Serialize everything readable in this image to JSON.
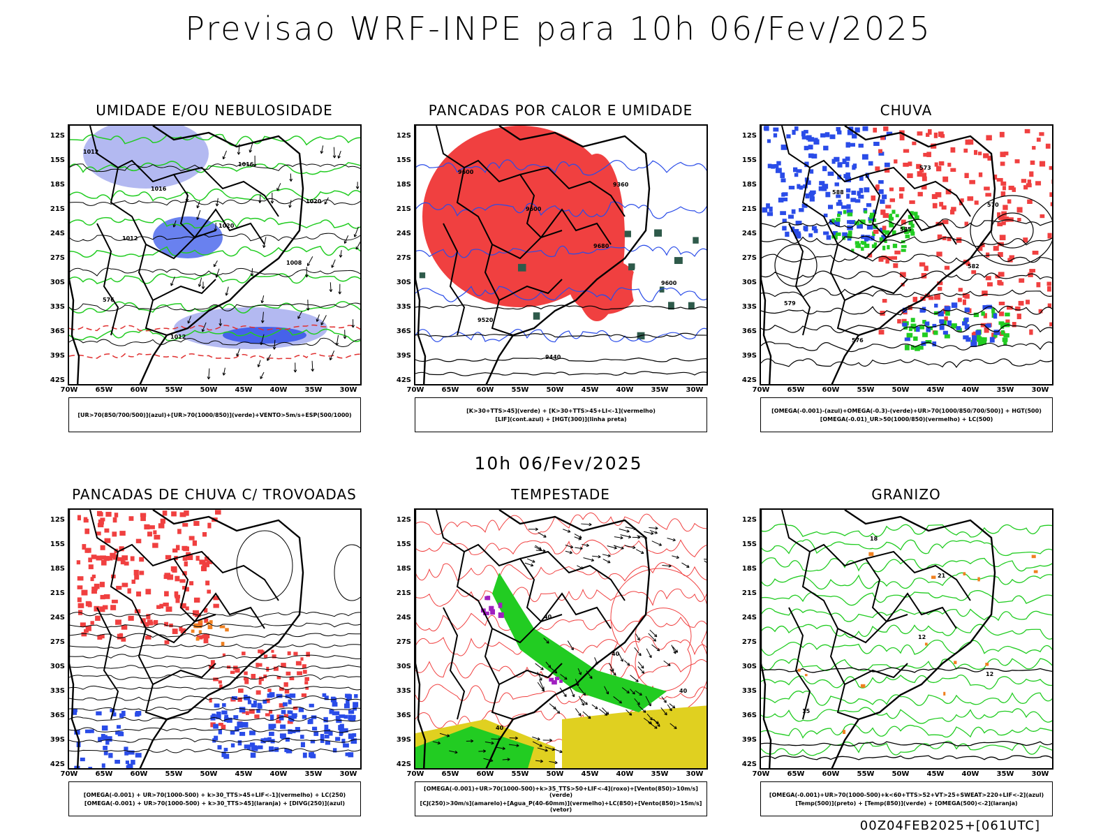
{
  "title": "Previsao WRF-INPE  para 10h 06/Fev/2025",
  "subtitle": "10h 06/Fev/2025",
  "footer": "00Z04FEB2025+[061UTC]",
  "axes": {
    "lat_labels": [
      "12S",
      "15S",
      "18S",
      "21S",
      "24S",
      "27S",
      "30S",
      "33S",
      "36S",
      "39S",
      "42S"
    ],
    "lon_labels": [
      "70W",
      "65W",
      "60W",
      "55W",
      "50W",
      "45W",
      "40W",
      "35W",
      "30W"
    ]
  },
  "panels": [
    {
      "title": "UMIDADE E/OU NEBULOSIDADE",
      "legend": [
        "[UR>70(850/700/500)](azul)+[UR>70(1000/850)](verde)+VENTO>5m/s+ESP(500/1000)"
      ],
      "contour_labels": [
        "1012",
        "1016",
        "1020",
        "1008",
        "576",
        "1012",
        "1016",
        "1020",
        "1012"
      ]
    },
    {
      "title": "PANCADAS POR CALOR E UMIDADE",
      "legend": [
        "[K>30+TTS>45](verde) + [K>30+TTS>45+LI<-1](vermelho)",
        "[LIF](cont.azul) + [HGT(300)](linha preta)"
      ],
      "contour_labels": [
        "9600",
        "9600",
        "9680",
        "9600",
        "9520",
        "9440",
        "9360"
      ]
    },
    {
      "title": "CHUVA",
      "legend": [
        "[OMEGA(-0.001)-(azul)+OMEGA(-0.3)-(verde)+UR>70(1000/850/700/500)] + HGT(500)",
        "[OMEGA(-0.01)_UR>50(1000/850)(vermelho) + LC(500)"
      ],
      "contour_labels": [
        "588",
        "585",
        "582",
        "579",
        "576",
        "573",
        "570"
      ]
    },
    {
      "title": "PANCADAS DE CHUVA C/ TROVOADAS",
      "legend": [
        "[OMEGA(-0.001) + UR>70(1000-500) + k>30_TTS>45+LIF<-1](vermelho) + LC(250)",
        "[OMEGA(-0.001) + UR>70(1000-500) + k>30_TTS>45](laranja) + [DIVG(250)](azul)"
      ],
      "contour_labels": []
    },
    {
      "title": "TEMPESTADE",
      "legend": [
        "[OMEGA(-0.001)+UR>70(1000-500)+k>35_TTS>50+LIF<-4](roxo)+[Vento(850)>10m/s](verde)",
        "[CJ(250)>30m/s](amarelo)+[Agua_P(40-60mm)](vermelho)+LC(850)+[Vento(850)>15m/s](vetor)"
      ],
      "contour_labels": [
        "40",
        "40",
        "40",
        "40"
      ]
    },
    {
      "title": "GRANIZO",
      "legend": [
        "[OMEGA(-0.001)+UR>70(1000-500)+k<60+TTS>52+VT>25+SWEAT>220+LIF<-2](azul)",
        "[Temp(500)](preto) + [Temp(850)](verde) + [OMEGA(500)<-2](laranja)"
      ],
      "contour_labels": [
        "12",
        "12",
        "15",
        "18",
        "21"
      ]
    }
  ],
  "colors": {
    "blue": "#2a4ce8",
    "lightblue": "#a0a8ee",
    "green": "#22cc22",
    "red": "#f04040",
    "yellow": "#e0d020",
    "purple": "#a020c0",
    "orange": "#f08020",
    "darkgreen": "#2e5a4a"
  }
}
